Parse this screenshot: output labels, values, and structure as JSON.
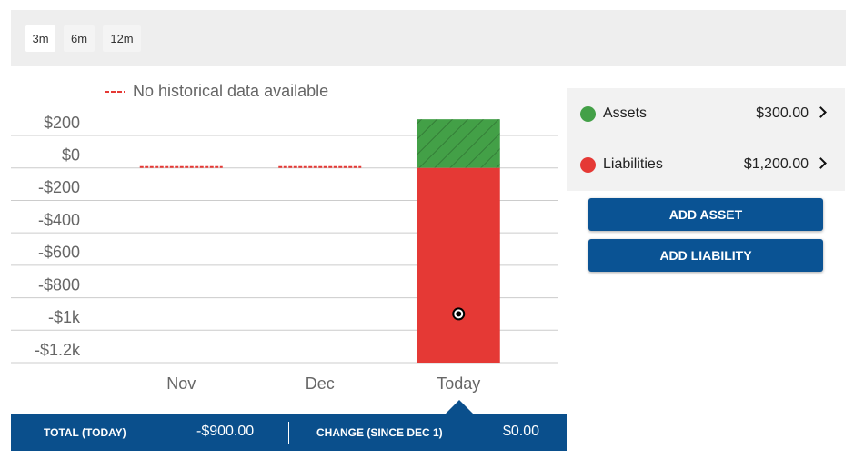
{
  "range_buttons": [
    "3m",
    "6m",
    "12m"
  ],
  "chart_data": {
    "type": "bar",
    "stacked": true,
    "legend": "No historical data available",
    "categories": [
      "Nov",
      "Dec",
      "Today"
    ],
    "series": [
      {
        "name": "Assets",
        "color": "#43a047",
        "values": [
          null,
          null,
          300
        ]
      },
      {
        "name": "Liabilities",
        "color": "#e53935",
        "values": [
          null,
          null,
          -1200
        ]
      }
    ],
    "net_values": [
      null,
      null,
      -900
    ],
    "ylim": [
      -1200,
      400
    ],
    "yticks": [
      {
        "value": 200,
        "label": "$200"
      },
      {
        "value": 0,
        "label": "$0"
      },
      {
        "value": -200,
        "label": "-$200"
      },
      {
        "value": -400,
        "label": "-$400"
      },
      {
        "value": -600,
        "label": "-$600"
      },
      {
        "value": -800,
        "label": "-$800"
      },
      {
        "value": -1000,
        "label": "-$1k"
      },
      {
        "value": -1200,
        "label": "-$1.2k"
      }
    ],
    "grid": true
  },
  "summary": {
    "values": [
      "$300.00",
      "$1,200.00"
    ],
    "buttons": [
      "ADD ASSET",
      "ADD LIABILITY"
    ]
  },
  "footer": {
    "total_label": "TOTAL (TODAY)",
    "total": "-$900.00",
    "change_label": "CHANGE (SINCE DEC 1)",
    "change": "$0.00"
  }
}
